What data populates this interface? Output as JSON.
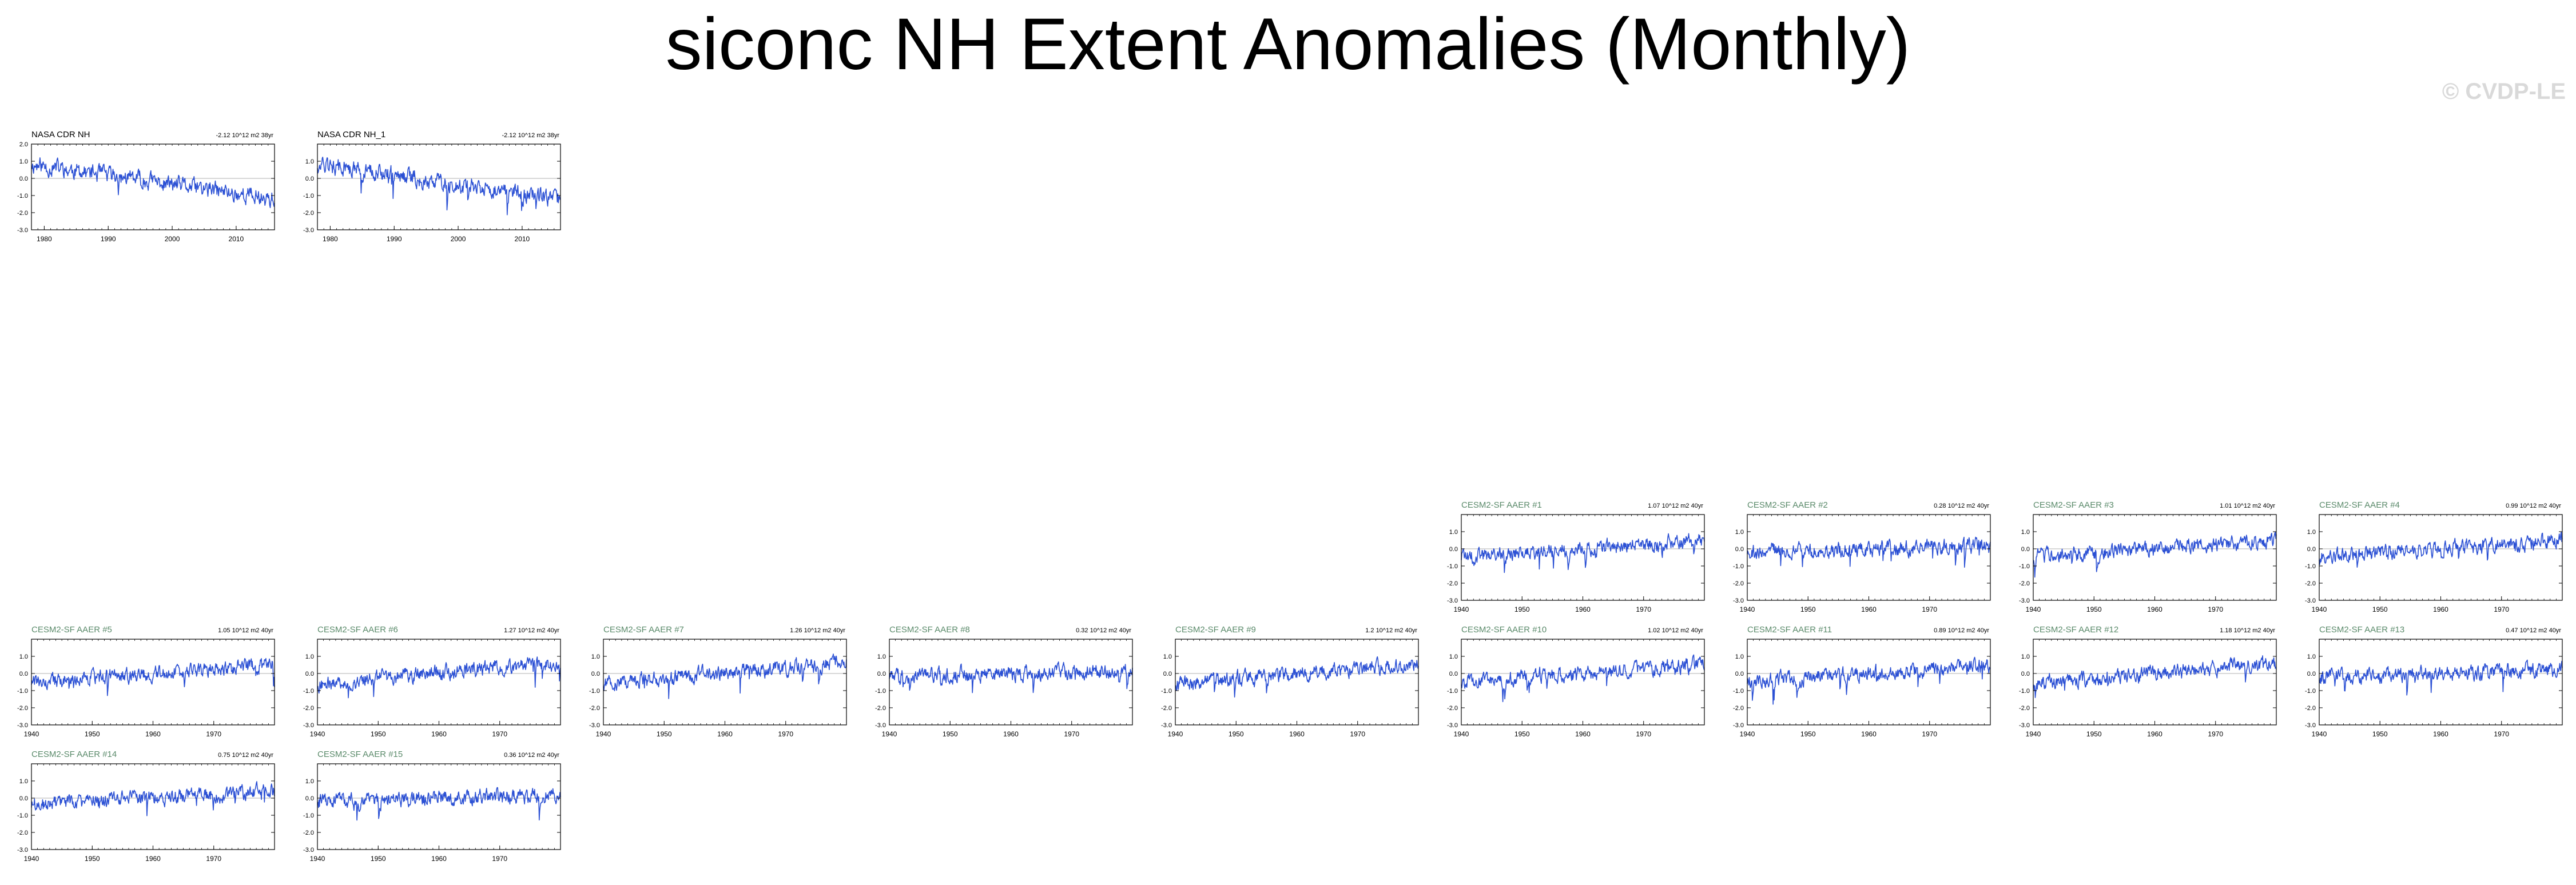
{
  "figure": {
    "title": "siconc NH Extent Anomalies (Monthly)",
    "watermark": "© CVDP-LE"
  },
  "colors": {
    "line": "#2b50d4",
    "obs_title": "#000000",
    "model_title": "#5a8a6a",
    "axis": "#000000",
    "zero_line": "#b0b0b0"
  },
  "chart_data": [
    {
      "id": "obs1",
      "type": "line",
      "title": "NASA CDR NH",
      "trend": "-2.12 10^12 m2 38yr",
      "x_range": [
        1978,
        2016
      ],
      "ylim": [
        -3.0,
        2.0
      ],
      "yticks": [
        2.0,
        1.0,
        0.0,
        -1.0,
        -2.0,
        -3.0
      ],
      "ytick_labels": [
        "2.0",
        "1.0",
        "0.0",
        "-1.0",
        "-2.0",
        "-3.0"
      ],
      "xticks": [
        1980,
        1990,
        2000,
        2010
      ],
      "xtick_labels": [
        "1980",
        "1990",
        "2000",
        "2010"
      ],
      "y_start": 0.8,
      "y_end": -1.2,
      "noise": 0.4,
      "seed": 11
    },
    {
      "id": "obs2",
      "type": "line",
      "title": "NASA CDR NH_1",
      "trend": "-2.12 10^12 m2 38yr",
      "x_range": [
        1978,
        2016
      ],
      "ylim": [
        -3.0,
        2.0
      ],
      "yticks": [
        1.0,
        0.0,
        -1.0,
        -2.0,
        -3.0
      ],
      "ytick_labels": [
        "1.0",
        "0.0",
        "-1.0",
        "-2.0",
        "-3.0"
      ],
      "xticks": [
        1980,
        1990,
        2000,
        2010
      ],
      "xtick_labels": [
        "1980",
        "1990",
        "2000",
        "2010"
      ],
      "y_start": 0.8,
      "y_end": -1.2,
      "noise": 0.4,
      "seed": 12
    },
    {
      "id": "m1",
      "type": "line",
      "title": "CESM2-SF AAER #1",
      "trend": "1.07 10^12 m2 40yr",
      "x_range": [
        1940,
        1980
      ],
      "ylim": [
        -3.0,
        2.0
      ],
      "yticks": [
        1.0,
        0.0,
        -1.0,
        -2.0,
        -3.0
      ],
      "ytick_labels": [
        "1.0",
        "0.0",
        "-1.0",
        "-2.0",
        "-3.0"
      ],
      "xticks": [
        1940,
        1950,
        1960,
        1970
      ],
      "xtick_labels": [
        "1940",
        "1950",
        "1960",
        "1970"
      ],
      "y_start": -0.5,
      "y_end": 0.5,
      "noise": 0.35,
      "seed": 101
    },
    {
      "id": "m2",
      "type": "line",
      "title": "CESM2-SF AAER #2",
      "trend": "0.28 10^12 m2 40yr",
      "x_range": [
        1940,
        1980
      ],
      "ylim": [
        -3.0,
        2.0
      ],
      "yticks": [
        1.0,
        0.0,
        -1.0,
        -2.0,
        -3.0
      ],
      "ytick_labels": [
        "1.0",
        "0.0",
        "-1.0",
        "-2.0",
        "-3.0"
      ],
      "xticks": [
        1940,
        1950,
        1960,
        1970
      ],
      "xtick_labels": [
        "1940",
        "1950",
        "1960",
        "1970"
      ],
      "y_start": -0.15,
      "y_end": 0.15,
      "noise": 0.35,
      "seed": 102
    },
    {
      "id": "m3",
      "type": "line",
      "title": "CESM2-SF AAER #3",
      "trend": "1.01 10^12 m2 40yr",
      "x_range": [
        1940,
        1980
      ],
      "ylim": [
        -3.0,
        2.0
      ],
      "yticks": [
        1.0,
        0.0,
        -1.0,
        -2.0,
        -3.0
      ],
      "ytick_labels": [
        "1.0",
        "0.0",
        "-1.0",
        "-2.0",
        "-3.0"
      ],
      "xticks": [
        1940,
        1950,
        1960,
        1970
      ],
      "xtick_labels": [
        "1940",
        "1950",
        "1960",
        "1970"
      ],
      "y_start": -0.5,
      "y_end": 0.5,
      "noise": 0.35,
      "seed": 103
    },
    {
      "id": "m4",
      "type": "line",
      "title": "CESM2-SF AAER #4",
      "trend": "0.99 10^12 m2 40yr",
      "x_range": [
        1940,
        1980
      ],
      "ylim": [
        -3.0,
        2.0
      ],
      "yticks": [
        1.0,
        0.0,
        -1.0,
        -2.0,
        -3.0
      ],
      "ytick_labels": [
        "1.0",
        "0.0",
        "-1.0",
        "-2.0",
        "-3.0"
      ],
      "xticks": [
        1940,
        1950,
        1960,
        1970
      ],
      "xtick_labels": [
        "1940",
        "1950",
        "1960",
        "1970"
      ],
      "y_start": -0.5,
      "y_end": 0.5,
      "noise": 0.35,
      "seed": 104
    },
    {
      "id": "m5",
      "type": "line",
      "title": "CESM2-SF AAER #5",
      "trend": "1.05 10^12 m2 40yr",
      "x_range": [
        1940,
        1980
      ],
      "ylim": [
        -3.0,
        2.0
      ],
      "yticks": [
        1.0,
        0.0,
        -1.0,
        -2.0,
        -3.0
      ],
      "ytick_labels": [
        "1.0",
        "0.0",
        "-1.0",
        "-2.0",
        "-3.0"
      ],
      "xticks": [
        1940,
        1950,
        1960,
        1970
      ],
      "xtick_labels": [
        "1940",
        "1950",
        "1960",
        "1970"
      ],
      "y_start": -0.5,
      "y_end": 0.5,
      "noise": 0.35,
      "seed": 105
    },
    {
      "id": "m6",
      "type": "line",
      "title": "CESM2-SF AAER #6",
      "trend": "1.27 10^12 m2 40yr",
      "x_range": [
        1940,
        1980
      ],
      "ylim": [
        -3.0,
        2.0
      ],
      "yticks": [
        1.0,
        0.0,
        -1.0,
        -2.0,
        -3.0
      ],
      "ytick_labels": [
        "1.0",
        "0.0",
        "-1.0",
        "-2.0",
        "-3.0"
      ],
      "xticks": [
        1940,
        1950,
        1960,
        1970
      ],
      "xtick_labels": [
        "1940",
        "1950",
        "1960",
        "1970"
      ],
      "y_start": -0.6,
      "y_end": 0.65,
      "noise": 0.35,
      "seed": 106
    },
    {
      "id": "m7",
      "type": "line",
      "title": "CESM2-SF AAER #7",
      "trend": "1.26 10^12 m2 40yr",
      "x_range": [
        1940,
        1980
      ],
      "ylim": [
        -3.0,
        2.0
      ],
      "yticks": [
        1.0,
        0.0,
        -1.0,
        -2.0,
        -3.0
      ],
      "ytick_labels": [
        "1.0",
        "0.0",
        "-1.0",
        "-2.0",
        "-3.0"
      ],
      "xticks": [
        1940,
        1950,
        1960,
        1970
      ],
      "xtick_labels": [
        "1940",
        "1950",
        "1960",
        "1970"
      ],
      "y_start": -0.6,
      "y_end": 0.65,
      "noise": 0.35,
      "seed": 107
    },
    {
      "id": "m8",
      "type": "line",
      "title": "CESM2-SF AAER #8",
      "trend": "0.32 10^12 m2 40yr",
      "x_range": [
        1940,
        1980
      ],
      "ylim": [
        -3.0,
        2.0
      ],
      "yticks": [
        1.0,
        0.0,
        -1.0,
        -2.0,
        -3.0
      ],
      "ytick_labels": [
        "1.0",
        "0.0",
        "-1.0",
        "-2.0",
        "-3.0"
      ],
      "xticks": [
        1940,
        1950,
        1960,
        1970
      ],
      "xtick_labels": [
        "1940",
        "1950",
        "1960",
        "1970"
      ],
      "y_start": -0.15,
      "y_end": 0.15,
      "noise": 0.35,
      "seed": 108
    },
    {
      "id": "m9",
      "type": "line",
      "title": "CESM2-SF AAER #9",
      "trend": "1.2 10^12 m2 40yr",
      "x_range": [
        1940,
        1980
      ],
      "ylim": [
        -3.0,
        2.0
      ],
      "yticks": [
        1.0,
        0.0,
        -1.0,
        -2.0,
        -3.0
      ],
      "ytick_labels": [
        "1.0",
        "0.0",
        "-1.0",
        "-2.0",
        "-3.0"
      ],
      "xticks": [
        1940,
        1950,
        1960,
        1970
      ],
      "xtick_labels": [
        "1940",
        "1950",
        "1960",
        "1970"
      ],
      "y_start": -0.6,
      "y_end": 0.6,
      "noise": 0.35,
      "seed": 109
    },
    {
      "id": "m10",
      "type": "line",
      "title": "CESM2-SF AAER #10",
      "trend": "1.02 10^12 m2 40yr",
      "x_range": [
        1940,
        1980
      ],
      "ylim": [
        -3.0,
        2.0
      ],
      "yticks": [
        1.0,
        0.0,
        -1.0,
        -2.0,
        -3.0
      ],
      "ytick_labels": [
        "1.0",
        "0.0",
        "-1.0",
        "-2.0",
        "-3.0"
      ],
      "xticks": [
        1940,
        1950,
        1960,
        1970
      ],
      "xtick_labels": [
        "1940",
        "1950",
        "1960",
        "1970"
      ],
      "y_start": -0.5,
      "y_end": 0.5,
      "noise": 0.35,
      "seed": 110
    },
    {
      "id": "m11",
      "type": "line",
      "title": "CESM2-SF AAER #11",
      "trend": "0.89 10^12 m2 40yr",
      "x_range": [
        1940,
        1980
      ],
      "ylim": [
        -3.0,
        2.0
      ],
      "yticks": [
        1.0,
        0.0,
        -1.0,
        -2.0,
        -3.0
      ],
      "ytick_labels": [
        "1.0",
        "0.0",
        "-1.0",
        "-2.0",
        "-3.0"
      ],
      "xticks": [
        1940,
        1950,
        1960,
        1970
      ],
      "xtick_labels": [
        "1940",
        "1950",
        "1960",
        "1970"
      ],
      "y_start": -0.45,
      "y_end": 0.45,
      "noise": 0.35,
      "seed": 111
    },
    {
      "id": "m12",
      "type": "line",
      "title": "CESM2-SF AAER #12",
      "trend": "1.18 10^12 m2 40yr",
      "x_range": [
        1940,
        1980
      ],
      "ylim": [
        -3.0,
        2.0
      ],
      "yticks": [
        1.0,
        0.0,
        -1.0,
        -2.0,
        -3.0
      ],
      "ytick_labels": [
        "1.0",
        "0.0",
        "-1.0",
        "-2.0",
        "-3.0"
      ],
      "xticks": [
        1940,
        1950,
        1960,
        1970
      ],
      "xtick_labels": [
        "1940",
        "1950",
        "1960",
        "1970"
      ],
      "y_start": -0.6,
      "y_end": 0.6,
      "noise": 0.35,
      "seed": 112
    },
    {
      "id": "m13",
      "type": "line",
      "title": "CESM2-SF AAER #13",
      "trend": "0.47 10^12 m2 40yr",
      "x_range": [
        1940,
        1980
      ],
      "ylim": [
        -3.0,
        2.0
      ],
      "yticks": [
        1.0,
        0.0,
        -1.0,
        -2.0,
        -3.0
      ],
      "ytick_labels": [
        "1.0",
        "0.0",
        "-1.0",
        "-2.0",
        "-3.0"
      ],
      "xticks": [
        1940,
        1950,
        1960,
        1970
      ],
      "xtick_labels": [
        "1940",
        "1950",
        "1960",
        "1970"
      ],
      "y_start": -0.25,
      "y_end": 0.25,
      "noise": 0.35,
      "seed": 113
    },
    {
      "id": "m14",
      "type": "line",
      "title": "CESM2-SF AAER #14",
      "trend": "0.75 10^12 m2 40yr",
      "x_range": [
        1940,
        1980
      ],
      "ylim": [
        -3.0,
        2.0
      ],
      "yticks": [
        1.0,
        0.0,
        -1.0,
        -2.0,
        -3.0
      ],
      "ytick_labels": [
        "1.0",
        "0.0",
        "-1.0",
        "-2.0",
        "-3.0"
      ],
      "xticks": [
        1940,
        1950,
        1960,
        1970
      ],
      "xtick_labels": [
        "1940",
        "1950",
        "1960",
        "1970"
      ],
      "y_start": -0.4,
      "y_end": 0.4,
      "noise": 0.35,
      "seed": 114
    },
    {
      "id": "m15",
      "type": "line",
      "title": "CESM2-SF AAER #15",
      "trend": "0.36 10^12 m2 40yr",
      "x_range": [
        1940,
        1980
      ],
      "ylim": [
        -3.0,
        2.0
      ],
      "yticks": [
        1.0,
        0.0,
        -1.0,
        -2.0,
        -3.0
      ],
      "ytick_labels": [
        "1.0",
        "0.0",
        "-1.0",
        "-2.0",
        "-3.0"
      ],
      "xticks": [
        1940,
        1950,
        1960,
        1970
      ],
      "xtick_labels": [
        "1940",
        "1950",
        "1960",
        "1970"
      ],
      "y_start": -0.2,
      "y_end": 0.2,
      "noise": 0.35,
      "seed": 115
    }
  ]
}
